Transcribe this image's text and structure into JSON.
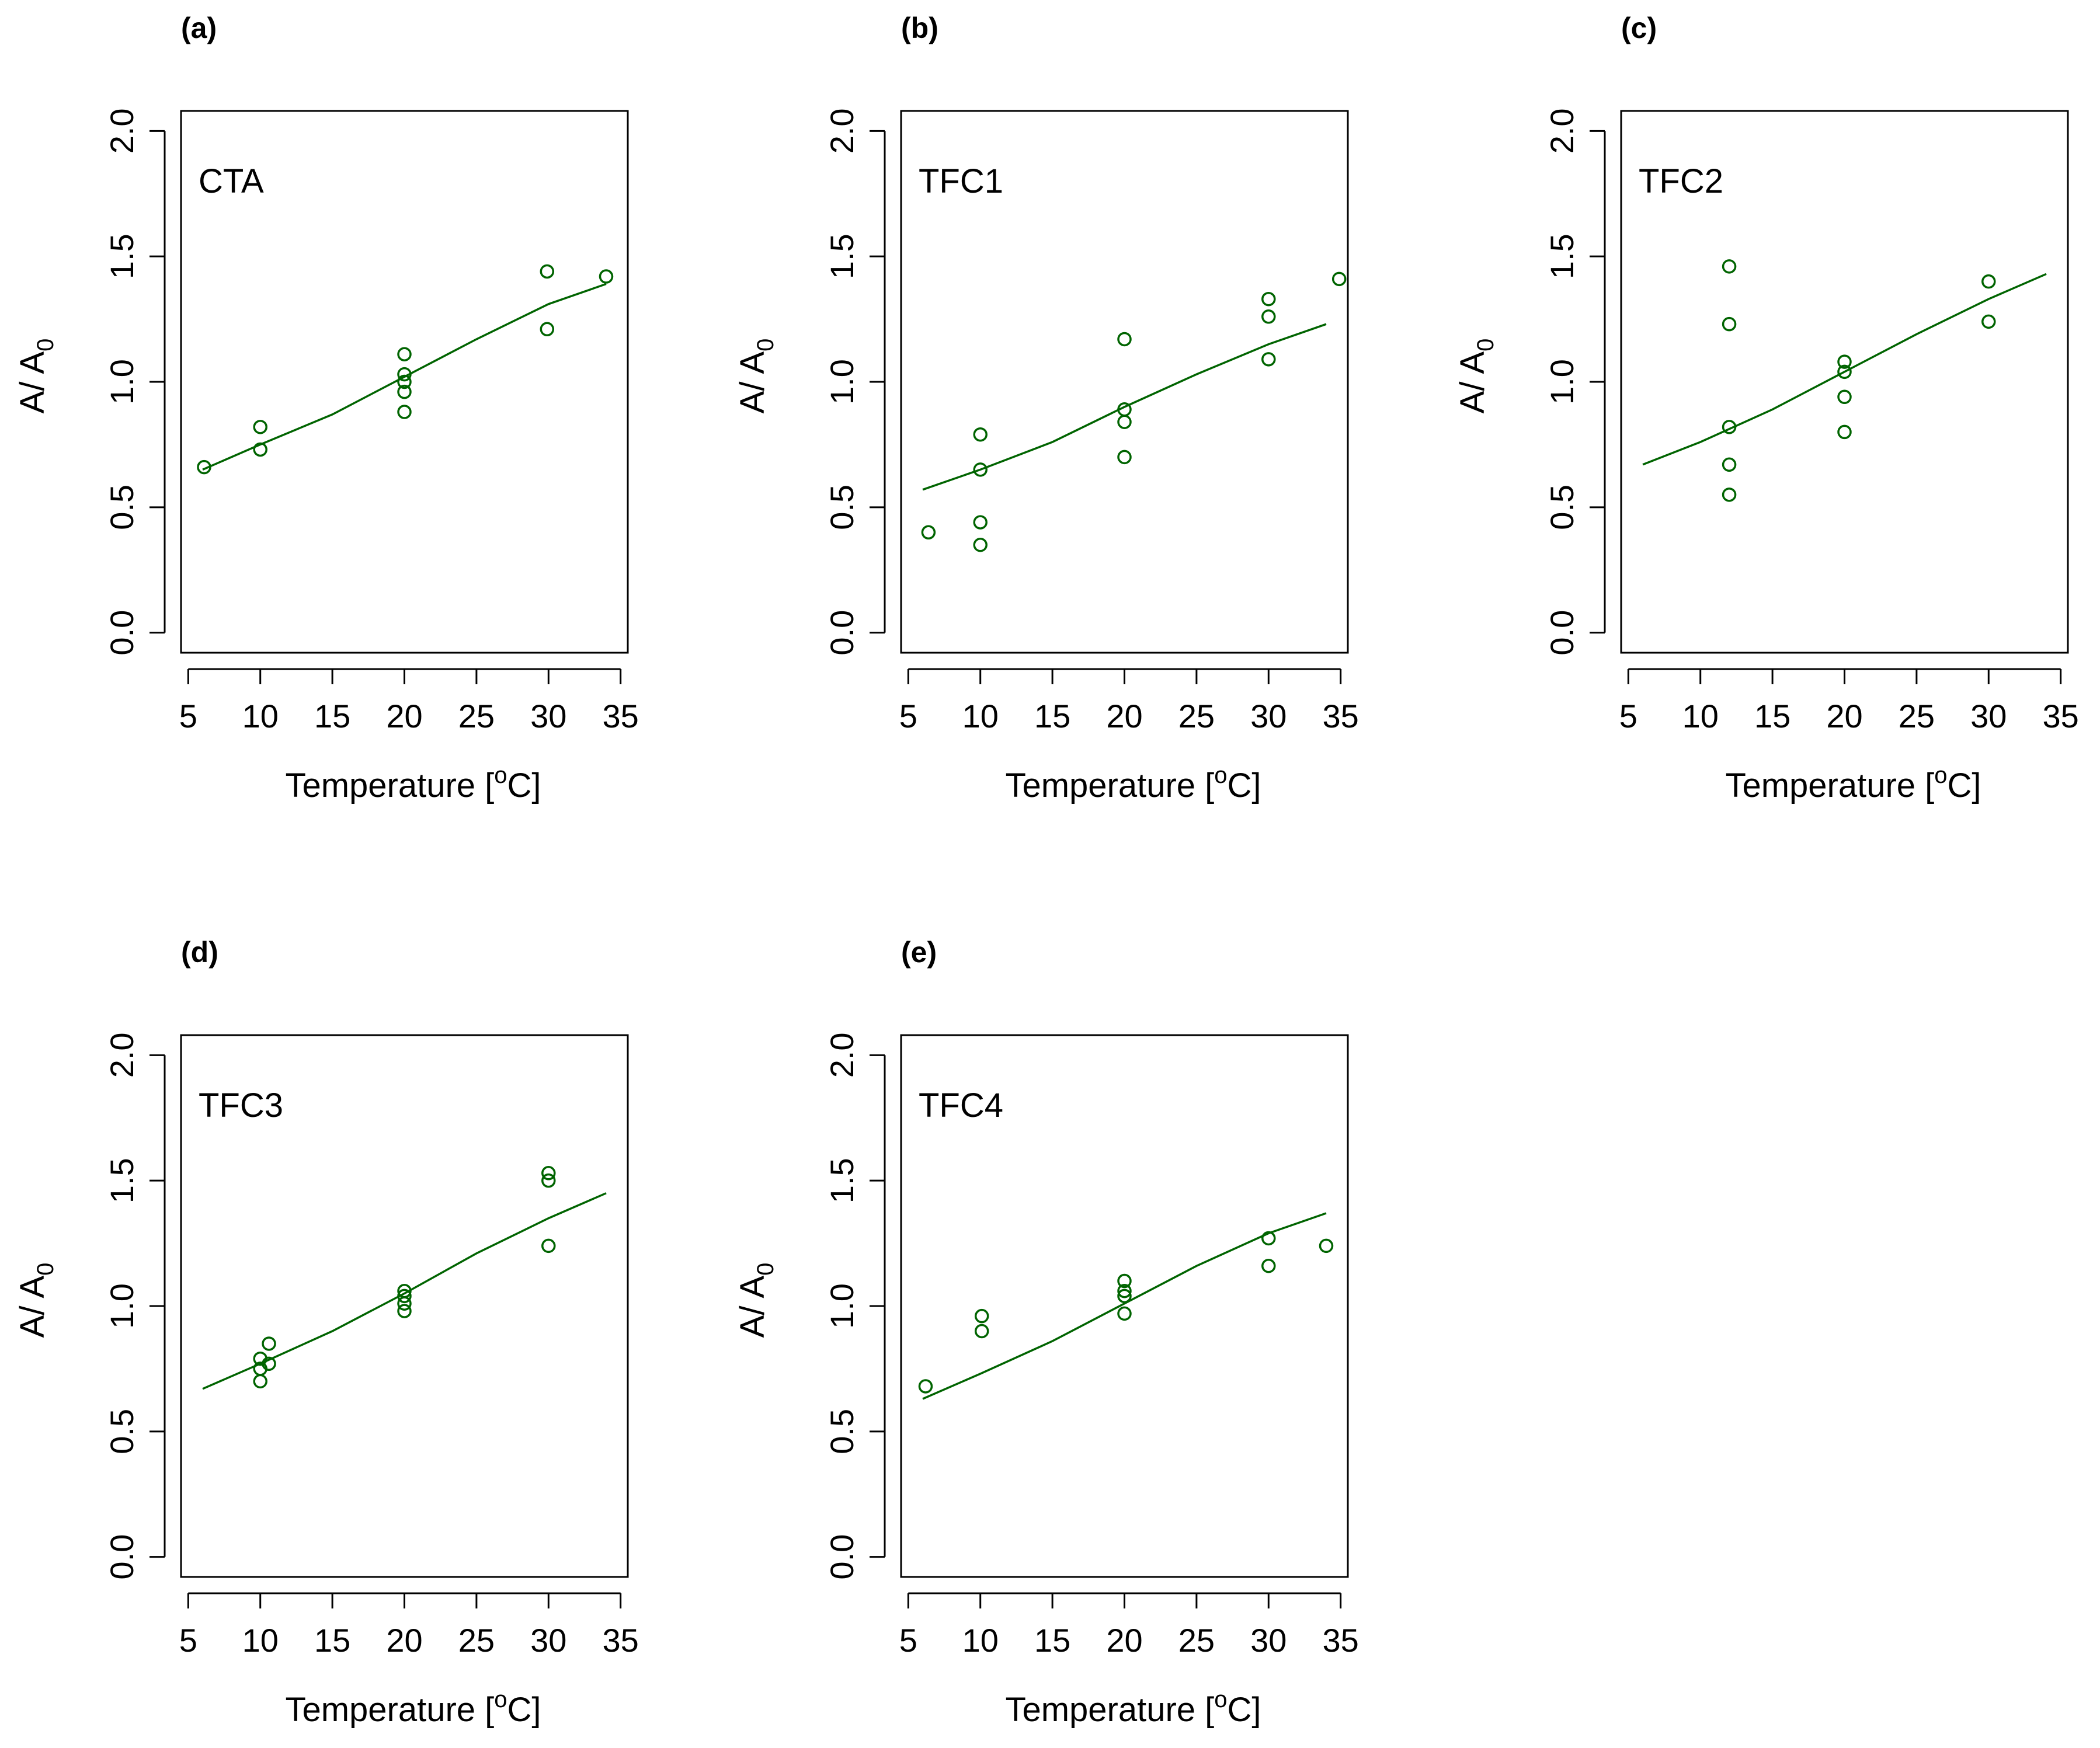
{
  "figure": {
    "accent_color": "#006400",
    "axis_color": "#000000"
  },
  "chart_data": [
    {
      "panel_label": "(a)",
      "type": "scatter",
      "annotation": "CTA",
      "title": "",
      "xlabel": "Temperature [",
      "xlabel_sup": "o",
      "xlabel_tail": "C]",
      "ylabel": "A/ A",
      "ylabel_sub": "0",
      "xlim": [
        4.5,
        35.5
      ],
      "ylim": [
        -0.08,
        2.08
      ],
      "xticks": [
        5,
        10,
        15,
        20,
        25,
        30,
        35
      ],
      "yticks": [
        0.0,
        0.5,
        1.0,
        1.5,
        2.0
      ],
      "xtick_labels": [
        "5",
        "10",
        "15",
        "20",
        "25",
        "30",
        "35"
      ],
      "ytick_labels": [
        "0.0",
        "0.5",
        "1.0",
        "1.5",
        "2.0"
      ],
      "grid": false,
      "points": [
        [
          6.1,
          0.66
        ],
        [
          10,
          0.82
        ],
        [
          10,
          0.73
        ],
        [
          20,
          1.11
        ],
        [
          20,
          1.03
        ],
        [
          20,
          1.0
        ],
        [
          20,
          0.96
        ],
        [
          20,
          0.88
        ],
        [
          29.9,
          1.44
        ],
        [
          29.9,
          1.21
        ],
        [
          34,
          1.42
        ]
      ],
      "fit_line": [
        [
          6,
          0.65
        ],
        [
          10,
          0.75
        ],
        [
          15,
          0.87
        ],
        [
          20,
          1.02
        ],
        [
          25,
          1.17
        ],
        [
          30,
          1.31
        ],
        [
          34,
          1.39
        ]
      ]
    },
    {
      "panel_label": "(b)",
      "type": "scatter",
      "annotation": "TFC1",
      "title": "",
      "xlabel": "Temperature [",
      "xlabel_sup": "o",
      "xlabel_tail": "C]",
      "ylabel": "A/ A",
      "ylabel_sub": "0",
      "xlim": [
        4.5,
        35.5
      ],
      "ylim": [
        -0.08,
        2.08
      ],
      "xticks": [
        5,
        10,
        15,
        20,
        25,
        30,
        35
      ],
      "yticks": [
        0.0,
        0.5,
        1.0,
        1.5,
        2.0
      ],
      "xtick_labels": [
        "5",
        "10",
        "15",
        "20",
        "25",
        "30",
        "35"
      ],
      "ytick_labels": [
        "0.0",
        "0.5",
        "1.0",
        "1.5",
        "2.0"
      ],
      "grid": false,
      "points": [
        [
          6.4,
          0.4
        ],
        [
          10,
          0.79
        ],
        [
          10,
          0.65
        ],
        [
          10,
          0.44
        ],
        [
          10,
          0.35
        ],
        [
          20,
          1.17
        ],
        [
          20,
          0.89
        ],
        [
          20,
          0.84
        ],
        [
          20,
          0.7
        ],
        [
          30,
          1.33
        ],
        [
          30,
          1.26
        ],
        [
          30,
          1.09
        ],
        [
          34.9,
          1.41
        ]
      ],
      "fit_line": [
        [
          6,
          0.57
        ],
        [
          10,
          0.65
        ],
        [
          15,
          0.76
        ],
        [
          20,
          0.9
        ],
        [
          25,
          1.03
        ],
        [
          30,
          1.15
        ],
        [
          34,
          1.23
        ]
      ]
    },
    {
      "panel_label": "(c)",
      "type": "scatter",
      "annotation": "TFC2",
      "title": "",
      "xlabel": "Temperature [",
      "xlabel_sup": "o",
      "xlabel_tail": "C]",
      "ylabel": "A/ A",
      "ylabel_sub": "0",
      "xlim": [
        4.5,
        35.5
      ],
      "ylim": [
        -0.08,
        2.08
      ],
      "xticks": [
        5,
        10,
        15,
        20,
        25,
        30,
        35
      ],
      "yticks": [
        0.0,
        0.5,
        1.0,
        1.5,
        2.0
      ],
      "xtick_labels": [
        "5",
        "10",
        "15",
        "20",
        "25",
        "30",
        "35"
      ],
      "ytick_labels": [
        "0.0",
        "0.5",
        "1.0",
        "1.5",
        "2.0"
      ],
      "grid": false,
      "points": [
        [
          12,
          1.46
        ],
        [
          12,
          1.23
        ],
        [
          12,
          0.82
        ],
        [
          12,
          0.67
        ],
        [
          12,
          0.55
        ],
        [
          20,
          1.08
        ],
        [
          20,
          1.04
        ],
        [
          20,
          0.94
        ],
        [
          20,
          0.8
        ],
        [
          30,
          1.4
        ],
        [
          30,
          1.24
        ]
      ],
      "fit_line": [
        [
          6,
          0.67
        ],
        [
          10,
          0.76
        ],
        [
          15,
          0.89
        ],
        [
          20,
          1.04
        ],
        [
          25,
          1.19
        ],
        [
          30,
          1.33
        ],
        [
          34,
          1.43
        ]
      ]
    },
    {
      "panel_label": "(d)",
      "type": "scatter",
      "annotation": "TFC3",
      "title": "",
      "xlabel": "Temperature [",
      "xlabel_sup": "o",
      "xlabel_tail": "C]",
      "ylabel": "A/ A",
      "ylabel_sub": "0",
      "xlim": [
        4.5,
        35.5
      ],
      "ylim": [
        -0.08,
        2.08
      ],
      "xticks": [
        5,
        10,
        15,
        20,
        25,
        30,
        35
      ],
      "yticks": [
        0.0,
        0.5,
        1.0,
        1.5,
        2.0
      ],
      "xtick_labels": [
        "5",
        "10",
        "15",
        "20",
        "25",
        "30",
        "35"
      ],
      "ytick_labels": [
        "0.0",
        "0.5",
        "1.0",
        "1.5",
        "2.0"
      ],
      "grid": false,
      "points": [
        [
          10.6,
          0.85
        ],
        [
          10,
          0.79
        ],
        [
          10.6,
          0.77
        ],
        [
          10,
          0.75
        ],
        [
          10,
          0.7
        ],
        [
          20,
          1.06
        ],
        [
          20,
          1.04
        ],
        [
          20,
          1.01
        ],
        [
          20,
          0.98
        ],
        [
          30,
          1.53
        ],
        [
          30,
          1.5
        ],
        [
          30,
          1.24
        ]
      ],
      "fit_line": [
        [
          6,
          0.67
        ],
        [
          10,
          0.77
        ],
        [
          15,
          0.9
        ],
        [
          20,
          1.05
        ],
        [
          25,
          1.21
        ],
        [
          30,
          1.35
        ],
        [
          34,
          1.45
        ]
      ]
    },
    {
      "panel_label": "(e)",
      "type": "scatter",
      "annotation": "TFC4",
      "title": "",
      "xlabel": "Temperature [",
      "xlabel_sup": "o",
      "xlabel_tail": "C]",
      "ylabel": "A/ A",
      "ylabel_sub": "0",
      "xlim": [
        4.5,
        35.5
      ],
      "ylim": [
        -0.08,
        2.08
      ],
      "xticks": [
        5,
        10,
        15,
        20,
        25,
        30,
        35
      ],
      "yticks": [
        0.0,
        0.5,
        1.0,
        1.5,
        2.0
      ],
      "xtick_labels": [
        "5",
        "10",
        "15",
        "20",
        "25",
        "30",
        "35"
      ],
      "ytick_labels": [
        "0.0",
        "0.5",
        "1.0",
        "1.5",
        "2.0"
      ],
      "grid": false,
      "points": [
        [
          6.2,
          0.68
        ],
        [
          10.1,
          0.96
        ],
        [
          10.1,
          0.9
        ],
        [
          20,
          1.1
        ],
        [
          20,
          1.06
        ],
        [
          20,
          1.04
        ],
        [
          20,
          0.97
        ],
        [
          30,
          1.27
        ],
        [
          30,
          1.16
        ],
        [
          34,
          1.24
        ]
      ],
      "fit_line": [
        [
          6,
          0.63
        ],
        [
          10,
          0.73
        ],
        [
          15,
          0.86
        ],
        [
          20,
          1.01
        ],
        [
          25,
          1.16
        ],
        [
          30,
          1.29
        ],
        [
          34,
          1.37
        ]
      ]
    }
  ]
}
